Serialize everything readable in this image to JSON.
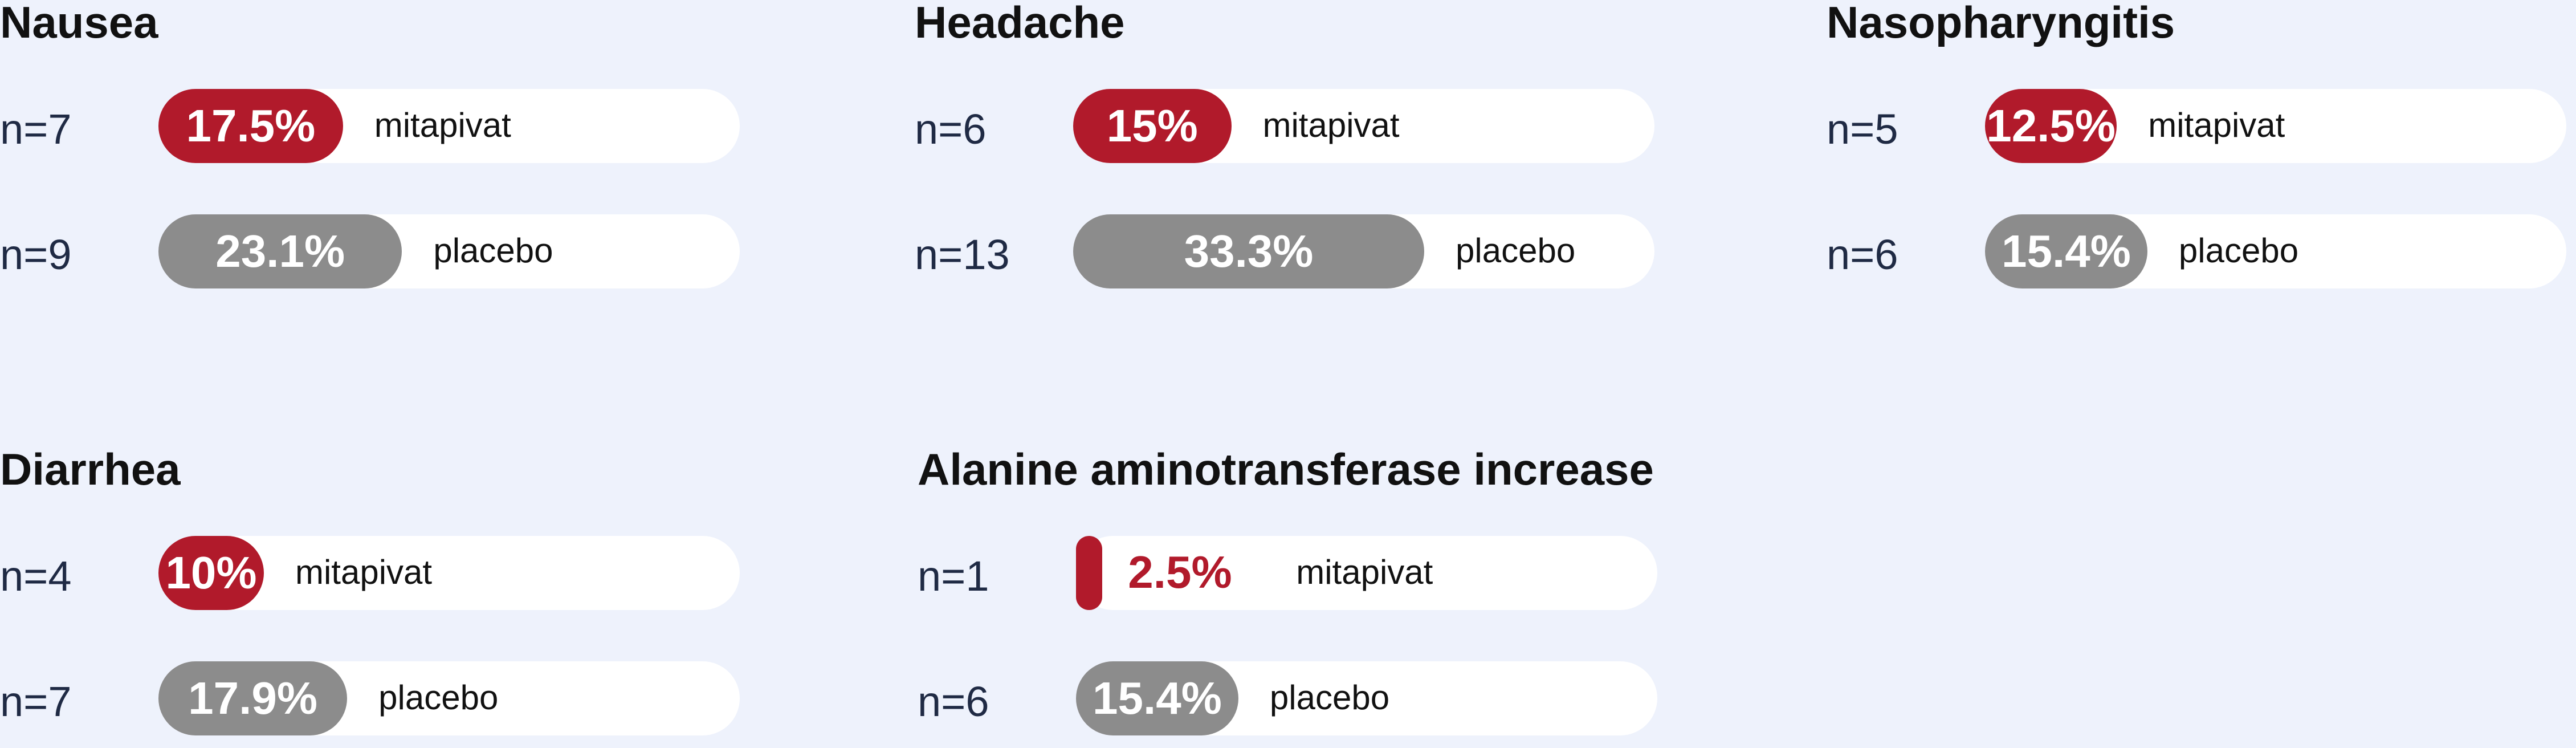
{
  "chart_data": [
    {
      "type": "bar",
      "title": "Nausea",
      "categories": [
        "mitapivat",
        "placebo"
      ],
      "n_labels": [
        "n=7",
        "n=9"
      ],
      "values": [
        17.5,
        23.1
      ],
      "value_labels": [
        "17.5%",
        "23.1%"
      ],
      "colors": [
        "#b11a2b",
        "#8c8c8c"
      ]
    },
    {
      "type": "bar",
      "title": "Headache",
      "categories": [
        "mitapivat",
        "placebo"
      ],
      "n_labels": [
        "n=6",
        "n=13"
      ],
      "values": [
        15,
        33.3
      ],
      "value_labels": [
        "15%",
        "33.3%"
      ],
      "colors": [
        "#b11a2b",
        "#8c8c8c"
      ]
    },
    {
      "type": "bar",
      "title": "Nasopharyngitis",
      "categories": [
        "mitapivat",
        "placebo"
      ],
      "n_labels": [
        "n=5",
        "n=6"
      ],
      "values": [
        12.5,
        15.4
      ],
      "value_labels": [
        "12.5%",
        "15.4%"
      ],
      "colors": [
        "#b11a2b",
        "#8c8c8c"
      ]
    },
    {
      "type": "bar",
      "title": "Diarrhea",
      "categories": [
        "mitapivat",
        "placebo"
      ],
      "n_labels": [
        "n=4",
        "n=7"
      ],
      "values": [
        10,
        17.9
      ],
      "value_labels": [
        "10%",
        "17.9%"
      ],
      "colors": [
        "#b11a2b",
        "#8c8c8c"
      ]
    },
    {
      "type": "bar",
      "title": "Alanine aminotransferase increase",
      "categories": [
        "mitapivat",
        "placebo"
      ],
      "n_labels": [
        "n=1",
        "n=6"
      ],
      "values": [
        2.5,
        15.4
      ],
      "value_labels": [
        "2.5%",
        "15.4%"
      ],
      "colors": [
        "#b11a2b",
        "#8c8c8c"
      ]
    }
  ]
}
